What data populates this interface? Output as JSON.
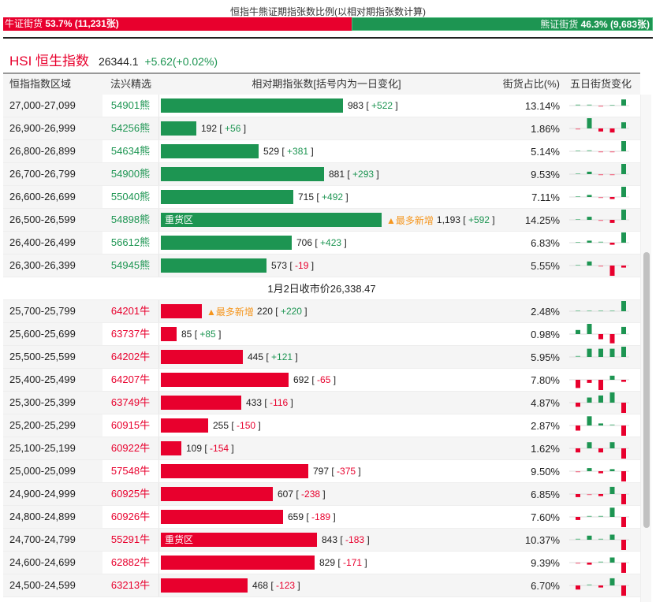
{
  "ratio": {
    "title": "恒指牛熊证期指张数比例(以相对期指张数计算)",
    "bull_label": "牛证街货",
    "bull_value": "53.7% (11,231张)",
    "bull_pct": 53.7,
    "bear_label": "熊证街货",
    "bear_value": "46.3% (9,683张)",
    "bear_pct": 46.3
  },
  "index": {
    "name": "HSI 恒生指数",
    "price": "26344.1",
    "change": "+5.62(+0.02%)"
  },
  "table": {
    "headers": [
      "恒指指数区域",
      "法兴精选",
      "相对期指张数[括号内为一日变化]",
      "街货占比(%)",
      "五日街货变化"
    ],
    "max_value": 1193,
    "close_label": "1月2日收市价26,338.47",
    "bear_rows": [
      {
        "range": "27,000-27,099",
        "code": "54901熊",
        "value": 983,
        "label": "983",
        "change": "+522",
        "pct": "13.14%",
        "spark": [
          0.5,
          0.5,
          -0.5,
          0,
          3
        ],
        "heavy": "",
        "flag": ""
      },
      {
        "range": "26,900-26,999",
        "code": "54256熊",
        "value": 192,
        "label": "192",
        "change": "+56",
        "pct": "1.86%",
        "spark": [
          -0.5,
          5,
          -1.5,
          -2,
          3
        ],
        "heavy": "",
        "flag": ""
      },
      {
        "range": "26,800-26,899",
        "code": "54634熊",
        "value": 529,
        "label": "529",
        "change": "+381",
        "pct": "5.14%",
        "spark": [
          0,
          0.5,
          -0.5,
          -0.5,
          5
        ],
        "heavy": "",
        "flag": ""
      },
      {
        "range": "26,700-26,799",
        "code": "54900熊",
        "value": 881,
        "label": "881",
        "change": "+293",
        "pct": "9.53%",
        "spark": [
          0,
          1.2,
          -0.5,
          -0.5,
          5
        ],
        "heavy": "",
        "flag": ""
      },
      {
        "range": "26,600-26,699",
        "code": "55040熊",
        "value": 715,
        "label": "715",
        "change": "+492",
        "pct": "7.11%",
        "spark": [
          0,
          1,
          -0.5,
          -1,
          5
        ],
        "heavy": "",
        "flag": ""
      },
      {
        "range": "26,500-26,599",
        "code": "54898熊",
        "value": 1193,
        "label": "1,193",
        "change": "+592",
        "pct": "14.25%",
        "spark": [
          0,
          1.5,
          -0.5,
          -1.5,
          5
        ],
        "heavy": "重货区",
        "flag": "▲最多新增"
      },
      {
        "range": "26,400-26,499",
        "code": "56612熊",
        "value": 706,
        "label": "706",
        "change": "+423",
        "pct": "6.83%",
        "spark": [
          0,
          1,
          0.5,
          -1,
          5
        ],
        "heavy": "",
        "flag": ""
      },
      {
        "range": "26,300-26,399",
        "code": "54945熊",
        "value": 573,
        "label": "573",
        "change": "-19",
        "pct": "5.55%",
        "spark": [
          0,
          2,
          -0.5,
          -5,
          -1
        ],
        "heavy": "",
        "flag": ""
      }
    ],
    "bull_rows": [
      {
        "range": "25,700-25,799",
        "code": "64201牛",
        "value": 220,
        "label": "220",
        "change": "+220",
        "pct": "2.48%",
        "spark": [
          0,
          0,
          0,
          0,
          5
        ],
        "heavy": "",
        "flag": "▲最多新增"
      },
      {
        "range": "25,600-25,699",
        "code": "63737牛",
        "value": 85,
        "label": "85",
        "change": "+85",
        "pct": "0.98%",
        "spark": [
          2,
          5,
          -2.5,
          -4.5,
          3.5
        ],
        "heavy": "",
        "flag": ""
      },
      {
        "range": "25,500-25,599",
        "code": "64202牛",
        "value": 445,
        "label": "445",
        "change": "+121",
        "pct": "5.95%",
        "spark": [
          0.5,
          4,
          4,
          4,
          5
        ],
        "heavy": "",
        "flag": ""
      },
      {
        "range": "25,400-25,499",
        "code": "64207牛",
        "value": 692,
        "label": "692",
        "change": "-65",
        "pct": "7.80%",
        "spark": [
          -4,
          -1.5,
          -5,
          2,
          -1
        ],
        "heavy": "",
        "flag": ""
      },
      {
        "range": "25,300-25,399",
        "code": "63749牛",
        "value": 433,
        "label": "433",
        "change": "-116",
        "pct": "4.87%",
        "spark": [
          -2,
          2.5,
          3.5,
          5,
          -5
        ],
        "heavy": "",
        "flag": ""
      },
      {
        "range": "25,200-25,299",
        "code": "60915牛",
        "value": 255,
        "label": "255",
        "change": "-150",
        "pct": "2.87%",
        "spark": [
          -2.5,
          4.5,
          1,
          0.5,
          -5
        ],
        "heavy": "",
        "flag": ""
      },
      {
        "range": "25,100-25,199",
        "code": "60922牛",
        "value": 109,
        "label": "109",
        "change": "-154",
        "pct": "1.62%",
        "spark": [
          -2,
          3,
          -2,
          3,
          -5
        ],
        "heavy": "",
        "flag": ""
      },
      {
        "range": "25,000-25,099",
        "code": "57548牛",
        "value": 797,
        "label": "797",
        "change": "-375",
        "pct": "9.50%",
        "spark": [
          -0.5,
          1.5,
          -1,
          1,
          -5
        ],
        "heavy": "",
        "flag": ""
      },
      {
        "range": "24,900-24,999",
        "code": "60925牛",
        "value": 607,
        "label": "607",
        "change": "-238",
        "pct": "6.85%",
        "spark": [
          -1.5,
          -0.5,
          -1,
          3.5,
          -5
        ],
        "heavy": "",
        "flag": ""
      },
      {
        "range": "24,800-24,899",
        "code": "60926牛",
        "value": 659,
        "label": "659",
        "change": "-189",
        "pct": "7.60%",
        "spark": [
          -1.5,
          0.5,
          0.5,
          4.5,
          -5
        ],
        "heavy": "",
        "flag": ""
      },
      {
        "range": "24,700-24,799",
        "code": "55291牛",
        "value": 843,
        "label": "843",
        "change": "-183",
        "pct": "10.37%",
        "spark": [
          0.5,
          2,
          0.5,
          2.5,
          -5
        ],
        "heavy": "重货区",
        "flag": ""
      },
      {
        "range": "24,600-24,699",
        "code": "62882牛",
        "value": 829,
        "label": "829",
        "change": "-171",
        "pct": "9.39%",
        "spark": [
          -0.5,
          -1,
          0.5,
          2.5,
          -5
        ],
        "heavy": "",
        "flag": ""
      },
      {
        "range": "24,500-24,599",
        "code": "63213牛",
        "value": 468,
        "label": "468",
        "change": "-123",
        "pct": "6.70%",
        "spark": [
          -2,
          0.5,
          -1,
          3.5,
          -5
        ],
        "heavy": "",
        "flag": ""
      }
    ]
  },
  "colors": {
    "bull": "#e8002d",
    "bear": "#1d9552",
    "flag": "#f5961e"
  }
}
